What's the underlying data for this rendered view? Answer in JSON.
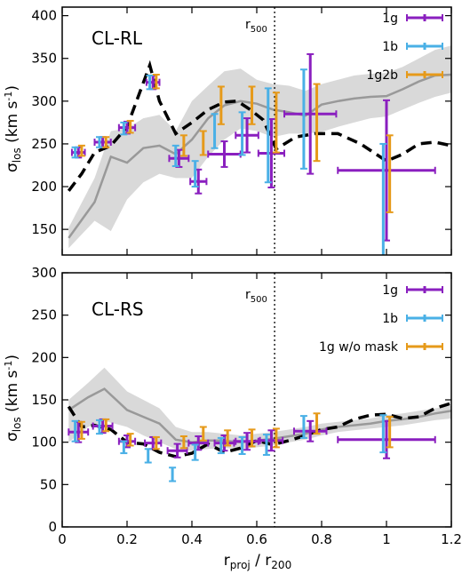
{
  "chart_data": [
    {
      "type": "scatter",
      "panel_label": "CL-RL",
      "ylabel_main": "σ",
      "ylabel_sub": "los",
      "ylabel_unit_pre": " (km s",
      "ylabel_unit_sup": "-1",
      "ylabel_unit_post": ")",
      "xlim": [
        0,
        1.2
      ],
      "ylim": [
        120,
        410
      ],
      "yticks": [
        150,
        200,
        250,
        300,
        350,
        400
      ],
      "xticks": [
        0,
        0.2,
        0.4,
        0.6,
        0.8,
        1,
        1.2
      ],
      "r500_label_main": "r",
      "r500_label_sub": "500",
      "r500_x": 0.655,
      "legend_position": "top-right",
      "colors": {
        "1g": "#8a1fbf",
        "1b": "#4ab0e6",
        "third": "#e69a1a",
        "grey_line": "#999999",
        "band": "#d9d9d9",
        "dashed": "#000000"
      },
      "series": [
        {
          "name": "1g",
          "key": "1g",
          "points": [
            {
              "x": 0.05,
              "y": 240,
              "xerr": 0.02,
              "yerr": 6
            },
            {
              "x": 0.125,
              "y": 252,
              "xerr": 0.025,
              "yerr": 6
            },
            {
              "x": 0.2,
              "y": 269,
              "xerr": 0.025,
              "yerr": 7
            },
            {
              "x": 0.28,
              "y": 322,
              "xerr": 0.02,
              "yerr": 8
            },
            {
              "x": 0.36,
              "y": 233,
              "xerr": 0.03,
              "yerr": 10
            },
            {
              "x": 0.42,
              "y": 206,
              "xerr": 0.025,
              "yerr": 14
            },
            {
              "x": 0.5,
              "y": 238,
              "xerr": 0.05,
              "yerr": 15
            },
            {
              "x": 0.57,
              "y": 260,
              "xerr": 0.035,
              "yerr": 20
            },
            {
              "x": 0.645,
              "y": 239,
              "xerr": 0.04,
              "yerr": 40
            },
            {
              "x": 0.765,
              "y": 285,
              "xerr": 0.08,
              "yerr": 70
            },
            {
              "x": 1.0,
              "y": 219,
              "xerr": 0.15,
              "yerr": 82
            }
          ]
        },
        {
          "name": "1b",
          "key": "1b",
          "points": [
            {
              "x": 0.04,
              "y": 240,
              "yerr": 6
            },
            {
              "x": 0.115,
              "y": 252,
              "yerr": 6
            },
            {
              "x": 0.19,
              "y": 268,
              "yerr": 7
            },
            {
              "x": 0.27,
              "y": 322,
              "yerr": 8
            },
            {
              "x": 0.35,
              "y": 236,
              "yerr": 12
            },
            {
              "x": 0.41,
              "y": 215,
              "yerr": 15
            },
            {
              "x": 0.47,
              "y": 265,
              "yerr": 20
            },
            {
              "x": 0.555,
              "y": 262,
              "yerr": 25
            },
            {
              "x": 0.635,
              "y": 260,
              "yerr": 55
            },
            {
              "x": 0.745,
              "y": 279,
              "yerr": 58
            },
            {
              "x": 0.99,
              "y": 182,
              "yerr": 68
            }
          ]
        },
        {
          "name": "1g2b",
          "key": "third",
          "points": [
            {
              "x": 0.06,
              "y": 242,
              "yerr": 6
            },
            {
              "x": 0.135,
              "y": 252,
              "yerr": 6
            },
            {
              "x": 0.21,
              "y": 270,
              "yerr": 7
            },
            {
              "x": 0.29,
              "y": 323,
              "yerr": 8
            },
            {
              "x": 0.375,
              "y": 248,
              "yerr": 12
            },
            {
              "x": 0.435,
              "y": 251,
              "yerr": 14
            },
            {
              "x": 0.49,
              "y": 295,
              "yerr": 22
            },
            {
              "x": 0.585,
              "y": 295,
              "yerr": 22
            },
            {
              "x": 0.66,
              "y": 275,
              "yerr": 35
            },
            {
              "x": 0.785,
              "y": 275,
              "yerr": 45
            },
            {
              "x": 1.01,
              "y": 215,
              "yerr": 45
            }
          ]
        }
      ],
      "dashed_line": {
        "x": [
          0.02,
          0.06,
          0.1,
          0.15,
          0.2,
          0.27,
          0.3,
          0.35,
          0.4,
          0.45,
          0.5,
          0.54,
          0.58,
          0.62,
          0.66,
          0.72,
          0.78,
          0.85,
          0.92,
          1.0,
          1.05,
          1.1,
          1.15,
          1.2
        ],
        "y": [
          195,
          215,
          240,
          248,
          270,
          342,
          300,
          262,
          275,
          290,
          299,
          300,
          290,
          278,
          244,
          258,
          262,
          262,
          250,
          230,
          238,
          250,
          252,
          248
        ]
      },
      "grey_line": {
        "x": [
          0.02,
          0.1,
          0.15,
          0.2,
          0.25,
          0.3,
          0.35,
          0.4,
          0.45,
          0.5,
          0.55,
          0.6,
          0.65,
          0.7,
          0.75,
          0.8,
          0.85,
          0.9,
          0.95,
          1.0,
          1.05,
          1.1,
          1.15,
          1.2
        ],
        "y": [
          140,
          182,
          235,
          228,
          245,
          248,
          238,
          255,
          280,
          295,
          300,
          297,
          290,
          287,
          283,
          296,
          300,
          303,
          305,
          306,
          314,
          323,
          330,
          331
        ]
      },
      "grey_band": {
        "x": [
          0.02,
          0.1,
          0.15,
          0.2,
          0.25,
          0.3,
          0.35,
          0.4,
          0.45,
          0.5,
          0.55,
          0.6,
          0.65,
          0.7,
          0.75,
          0.8,
          0.85,
          0.9,
          0.95,
          1.0,
          1.05,
          1.1,
          1.15,
          1.2
        ],
        "lo": [
          128,
          160,
          148,
          185,
          205,
          215,
          210,
          210,
          235,
          255,
          268,
          265,
          258,
          262,
          262,
          264,
          270,
          275,
          280,
          282,
          290,
          298,
          305,
          310
        ],
        "hi": [
          152,
          210,
          265,
          268,
          280,
          284,
          265,
          300,
          318,
          335,
          338,
          325,
          320,
          318,
          312,
          320,
          325,
          330,
          332,
          333,
          340,
          350,
          360,
          365
        ]
      }
    },
    {
      "type": "scatter",
      "panel_label": "CL-RS",
      "ylabel_main": "σ",
      "ylabel_sub": "los",
      "ylabel_unit_pre": " (km s",
      "ylabel_unit_sup": "-1",
      "ylabel_unit_post": ")",
      "xlabel_main": "r",
      "xlabel_sub1": "proj",
      "xlabel_mid": " / r",
      "xlabel_sub2": "200",
      "xlim": [
        0,
        1.2
      ],
      "ylim": [
        0,
        300
      ],
      "yticks": [
        0,
        50,
        100,
        150,
        200,
        250,
        300
      ],
      "xticks": [
        0,
        0.2,
        0.4,
        0.6,
        0.8,
        1,
        1.2
      ],
      "xticklabels": [
        "0",
        "0.2",
        "0.4",
        "0.6",
        "0.8",
        "1",
        "1.2"
      ],
      "r500_label_main": "r",
      "r500_label_sub": "500",
      "r500_x": 0.655,
      "legend_position": "top-right",
      "colors": {
        "1g": "#8a1fbf",
        "1b": "#4ab0e6",
        "third": "#e69a1a",
        "grey_line": "#999999",
        "band": "#d9d9d9",
        "dashed": "#000000"
      },
      "series": [
        {
          "name": "1g",
          "key": "1g",
          "points": [
            {
              "x": 0.05,
              "y": 112,
              "xerr": 0.03,
              "yerr": 12
            },
            {
              "x": 0.125,
              "y": 119,
              "xerr": 0.03,
              "yerr": 8
            },
            {
              "x": 0.2,
              "y": 101,
              "xerr": 0.025,
              "yerr": 7
            },
            {
              "x": 0.28,
              "y": 99,
              "xerr": 0.025,
              "yerr": 7
            },
            {
              "x": 0.355,
              "y": 90,
              "xerr": 0.03,
              "yerr": 8
            },
            {
              "x": 0.42,
              "y": 99,
              "xerr": 0.03,
              "yerr": 8
            },
            {
              "x": 0.5,
              "y": 99,
              "xerr": 0.03,
              "yerr": 9
            },
            {
              "x": 0.57,
              "y": 101,
              "xerr": 0.035,
              "yerr": 10
            },
            {
              "x": 0.645,
              "y": 102,
              "xerr": 0.035,
              "yerr": 12
            },
            {
              "x": 0.765,
              "y": 113,
              "xerr": 0.05,
              "yerr": 12
            },
            {
              "x": 1.0,
              "y": 103,
              "xerr": 0.15,
              "yerr": 22
            }
          ]
        },
        {
          "name": "1b",
          "key": "1b",
          "points": [
            {
              "x": 0.04,
              "y": 113,
              "yerr": 12
            },
            {
              "x": 0.115,
              "y": 118,
              "yerr": 8
            },
            {
              "x": 0.19,
              "y": 94,
              "yerr": 7
            },
            {
              "x": 0.265,
              "y": 84,
              "yerr": 8
            },
            {
              "x": 0.34,
              "y": 62,
              "yerr": 8
            },
            {
              "x": 0.41,
              "y": 88,
              "yerr": 9
            },
            {
              "x": 0.49,
              "y": 96,
              "yerr": 9
            },
            {
              "x": 0.555,
              "y": 96,
              "yerr": 10
            },
            {
              "x": 0.63,
              "y": 97,
              "yerr": 12
            },
            {
              "x": 0.745,
              "y": 118,
              "yerr": 13
            },
            {
              "x": 0.99,
              "y": 110,
              "yerr": 22
            }
          ]
        },
        {
          "name": "1g w/o mask",
          "key": "third",
          "points": [
            {
              "x": 0.06,
              "y": 114,
              "yerr": 10
            },
            {
              "x": 0.135,
              "y": 120,
              "yerr": 7
            },
            {
              "x": 0.21,
              "y": 103,
              "yerr": 7
            },
            {
              "x": 0.29,
              "y": 99,
              "yerr": 7
            },
            {
              "x": 0.375,
              "y": 100,
              "yerr": 7
            },
            {
              "x": 0.435,
              "y": 110,
              "yerr": 8
            },
            {
              "x": 0.51,
              "y": 105,
              "yerr": 9
            },
            {
              "x": 0.585,
              "y": 105,
              "yerr": 10
            },
            {
              "x": 0.66,
              "y": 105,
              "yerr": 11
            },
            {
              "x": 0.785,
              "y": 122,
              "yerr": 12
            },
            {
              "x": 1.01,
              "y": 112,
              "yerr": 18
            }
          ]
        }
      ],
      "dashed_line": {
        "x": [
          0.02,
          0.06,
          0.1,
          0.15,
          0.2,
          0.25,
          0.3,
          0.35,
          0.4,
          0.45,
          0.5,
          0.55,
          0.6,
          0.65,
          0.7,
          0.75,
          0.8,
          0.85,
          0.9,
          0.95,
          1.0,
          1.05,
          1.1,
          1.15,
          1.2
        ],
        "y": [
          142,
          118,
          120,
          115,
          100,
          98,
          88,
          83,
          87,
          98,
          88,
          93,
          102,
          97,
          102,
          108,
          115,
          118,
          127,
          132,
          133,
          128,
          130,
          140,
          146
        ]
      },
      "grey_line": {
        "x": [
          0.02,
          0.08,
          0.13,
          0.2,
          0.25,
          0.3,
          0.35,
          0.4,
          0.45,
          0.5,
          0.55,
          0.6,
          0.65,
          0.7,
          0.75,
          0.8,
          0.85,
          0.9,
          0.95,
          1.0,
          1.05,
          1.1,
          1.15,
          1.2
        ],
        "y": [
          138,
          153,
          163,
          138,
          130,
          122,
          103,
          100,
          102,
          102,
          100,
          102,
          104,
          107,
          110,
          115,
          118,
          120,
          122,
          125,
          127,
          130,
          134,
          137
        ]
      },
      "grey_band": {
        "x": [
          0.02,
          0.08,
          0.13,
          0.2,
          0.25,
          0.3,
          0.35,
          0.4,
          0.45,
          0.5,
          0.55,
          0.6,
          0.65,
          0.7,
          0.75,
          0.8,
          0.85,
          0.9,
          0.95,
          1.0,
          1.05,
          1.1,
          1.15,
          1.2
        ],
        "lo": [
          100,
          118,
          125,
          118,
          108,
          100,
          92,
          90,
          92,
          93,
          92,
          94,
          96,
          100,
          103,
          108,
          112,
          114,
          116,
          118,
          120,
          123,
          126,
          128
        ],
        "hi": [
          150,
          170,
          188,
          160,
          150,
          140,
          118,
          112,
          112,
          110,
          108,
          110,
          112,
          115,
          118,
          122,
          124,
          126,
          128,
          132,
          134,
          137,
          140,
          143
        ]
      }
    }
  ]
}
